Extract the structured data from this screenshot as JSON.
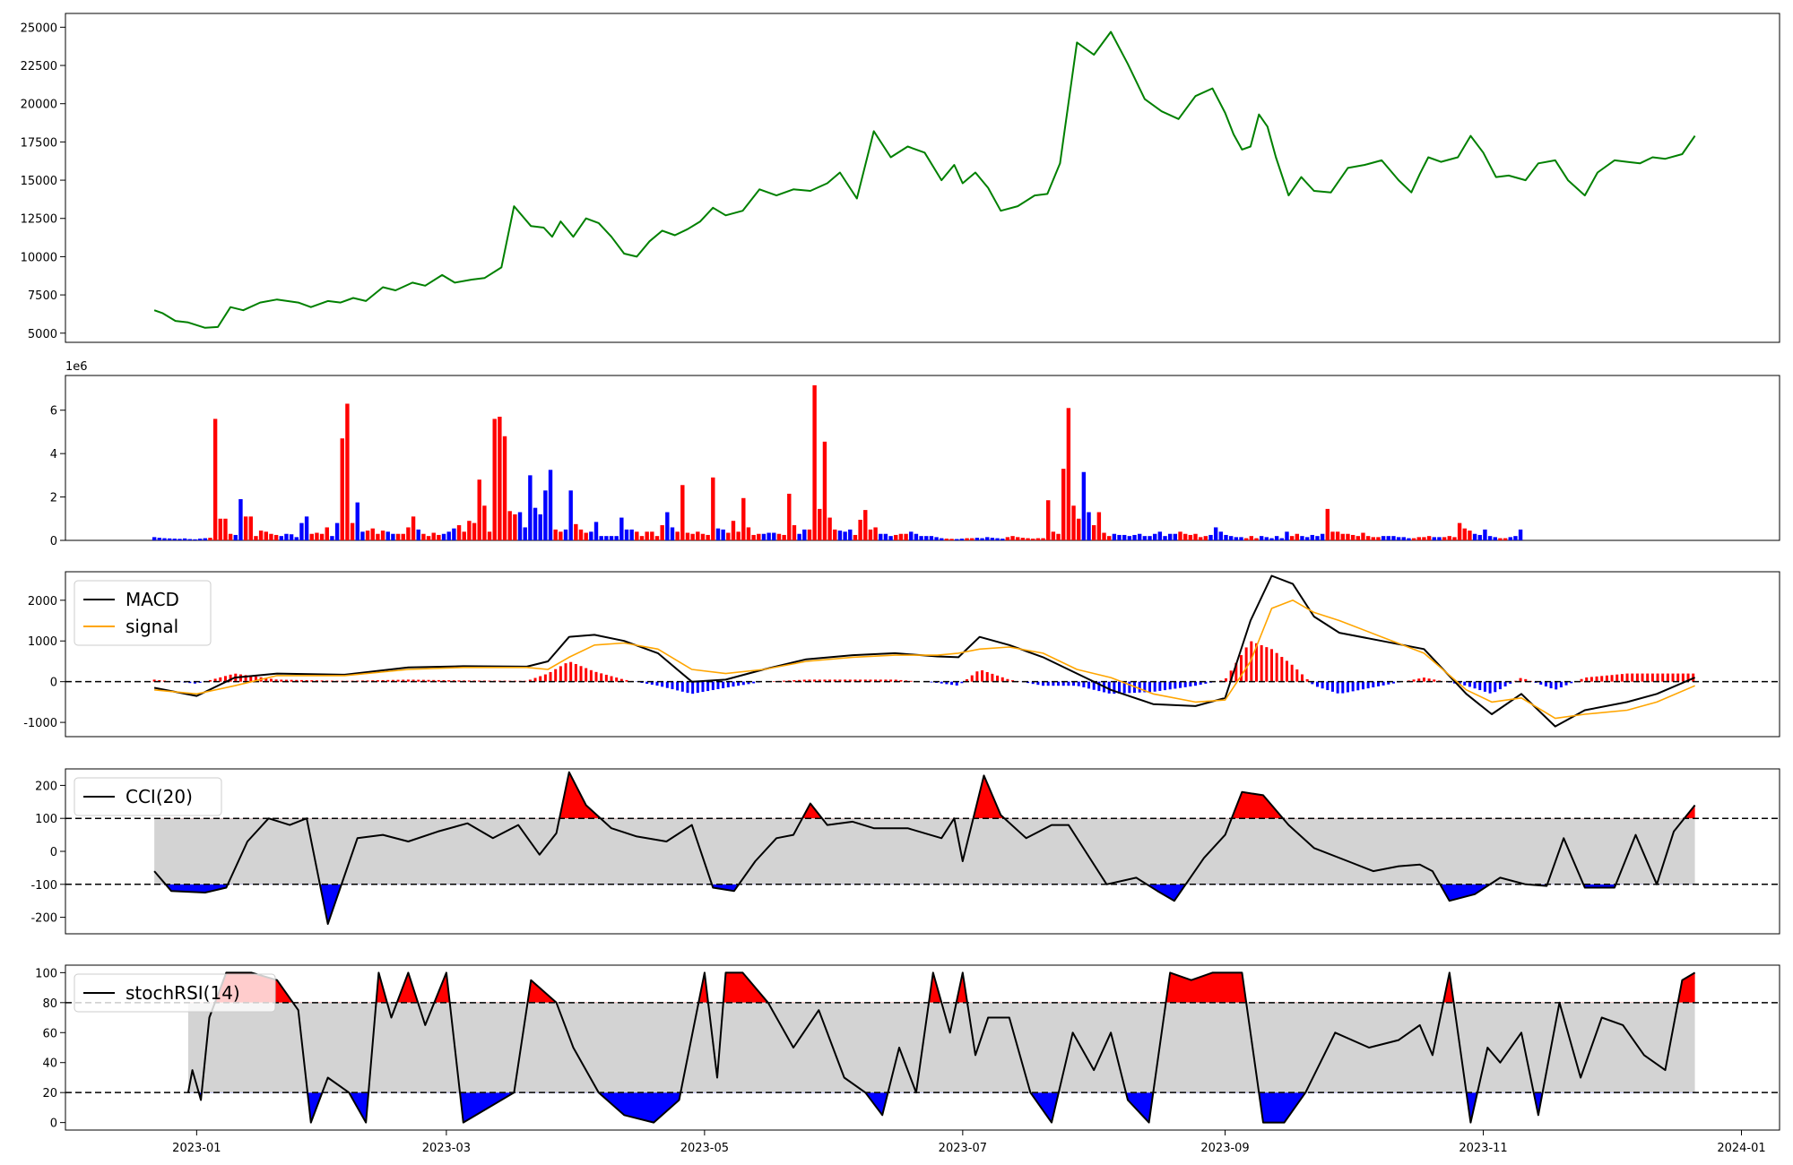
{
  "chart_data": [
    {
      "type": "line",
      "name": "price",
      "color": "#008000",
      "ylim": [
        4400,
        25900
      ],
      "yticks": [
        5000,
        7500,
        10000,
        12500,
        15000,
        17500,
        20000,
        22500,
        25000
      ],
      "x": [
        "2022-12-22",
        "2022-12-24",
        "2022-12-27",
        "2022-12-30",
        "2023-01-03",
        "2023-01-06",
        "2023-01-09",
        "2023-01-12",
        "2023-01-16",
        "2023-01-20",
        "2023-01-25",
        "2023-01-28",
        "2023-02-01",
        "2023-02-04",
        "2023-02-07",
        "2023-02-10",
        "2023-02-14",
        "2023-02-17",
        "2023-02-21",
        "2023-02-24",
        "2023-02-28",
        "2023-03-03",
        "2023-03-07",
        "2023-03-10",
        "2023-03-14",
        "2023-03-17",
        "2023-03-21",
        "2023-03-24",
        "2023-03-26",
        "2023-03-28",
        "2023-03-31",
        "2023-04-03",
        "2023-04-06",
        "2023-04-09",
        "2023-04-12",
        "2023-04-15",
        "2023-04-18",
        "2023-04-21",
        "2023-04-24",
        "2023-04-27",
        "2023-04-30",
        "2023-05-03",
        "2023-05-06",
        "2023-05-10",
        "2023-05-14",
        "2023-05-18",
        "2023-05-22",
        "2023-05-26",
        "2023-05-30",
        "2023-06-02",
        "2023-06-06",
        "2023-06-10",
        "2023-06-14",
        "2023-06-18",
        "2023-06-22",
        "2023-06-26",
        "2023-06-29",
        "2023-07-01",
        "2023-07-04",
        "2023-07-07",
        "2023-07-10",
        "2023-07-14",
        "2023-07-18",
        "2023-07-21",
        "2023-07-24",
        "2023-07-28",
        "2023-08-01",
        "2023-08-05",
        "2023-08-09",
        "2023-08-13",
        "2023-08-17",
        "2023-08-21",
        "2023-08-25",
        "2023-08-29",
        "2023-09-01",
        "2023-09-03",
        "2023-09-05",
        "2023-09-07",
        "2023-09-09",
        "2023-09-11",
        "2023-09-13",
        "2023-09-16",
        "2023-09-19",
        "2023-09-22",
        "2023-09-26",
        "2023-09-30",
        "2023-10-04",
        "2023-10-08",
        "2023-10-12",
        "2023-10-15",
        "2023-10-17",
        "2023-10-19",
        "2023-10-22",
        "2023-10-26",
        "2023-10-29",
        "2023-11-01",
        "2023-11-04",
        "2023-11-07",
        "2023-11-11",
        "2023-11-14",
        "2023-11-18",
        "2023-11-21",
        "2023-11-25",
        "2023-11-28",
        "2023-12-02",
        "2023-12-05",
        "2023-12-08",
        "2023-12-11",
        "2023-12-14",
        "2023-12-18",
        "2023-12-21"
      ],
      "y": [
        6500,
        6300,
        5800,
        5700,
        5350,
        5400,
        6700,
        6500,
        7000,
        7200,
        7000,
        6700,
        7100,
        7000,
        7300,
        7100,
        8000,
        7800,
        8300,
        8100,
        8800,
        8300,
        8500,
        8600,
        9300,
        13300,
        12000,
        11900,
        11300,
        12300,
        11300,
        12500,
        12200,
        11300,
        10200,
        10000,
        11000,
        11700,
        11400,
        11800,
        12300,
        13200,
        12700,
        13000,
        14400,
        14000,
        14400,
        14300,
        14800,
        15500,
        13800,
        18200,
        16500,
        17200,
        16800,
        15000,
        16000,
        14800,
        15500,
        14500,
        13000,
        13300,
        14000,
        14100,
        16100,
        24000,
        23200,
        24700,
        22600,
        20300,
        19500,
        19000,
        20500,
        21000,
        19400,
        18000,
        17000,
        17200,
        19300,
        18500,
        16500,
        14000,
        15200,
        14300,
        14200,
        15800,
        16000,
        16300,
        15000,
        14200,
        15400,
        16500,
        16200,
        16500,
        17900,
        16800,
        15200,
        15300,
        15000,
        16100,
        16300,
        15000,
        14000,
        15500,
        16300,
        16200,
        16100,
        16500,
        16400,
        16700,
        17900
      ]
    },
    {
      "type": "bar",
      "name": "volume",
      "scale_label": "1e6",
      "ylim": [
        0,
        7.6
      ],
      "yticks": [
        0,
        2,
        4,
        6
      ],
      "colors": {
        "up": "#ff0000",
        "down": "#0000ff"
      },
      "start": "2022-12-22",
      "step_days": 1.2,
      "values": [
        0.15,
        0.12,
        0.1,
        0.09,
        0.08,
        0.07,
        0.09,
        0.06,
        0.05,
        0.08,
        0.1,
        0.12,
        5.6,
        1.0,
        1.0,
        0.3,
        0.25,
        1.9,
        1.1,
        1.1,
        0.2,
        0.45,
        0.4,
        0.3,
        0.25,
        0.2,
        0.3,
        0.28,
        0.15,
        0.8,
        1.1,
        0.3,
        0.35,
        0.3,
        0.6,
        0.2,
        0.8,
        4.7,
        6.3,
        0.8,
        1.75,
        0.4,
        0.45,
        0.55,
        0.3,
        0.45,
        0.4,
        0.3,
        0.3,
        0.3,
        0.6,
        1.1,
        0.5,
        0.3,
        0.2,
        0.35,
        0.25,
        0.3,
        0.4,
        0.55,
        0.7,
        0.4,
        0.9,
        0.8,
        2.8,
        1.6,
        0.4,
        5.6,
        5.7,
        4.8,
        1.35,
        1.2,
        1.3,
        0.6,
        3.0,
        1.5,
        1.2,
        2.3,
        3.25,
        0.5,
        0.4,
        0.5,
        2.3,
        0.75,
        0.5,
        0.35,
        0.4,
        0.85,
        0.2,
        0.2,
        0.2,
        0.2,
        1.05,
        0.5,
        0.5,
        0.4,
        0.2,
        0.4,
        0.4,
        0.2,
        0.7,
        1.3,
        0.6,
        0.4,
        2.55,
        0.35,
        0.3,
        0.4,
        0.3,
        0.25,
        2.9,
        0.55,
        0.5,
        0.35,
        0.9,
        0.4,
        1.95,
        0.6,
        0.25,
        0.3,
        0.3,
        0.35,
        0.35,
        0.3,
        0.25,
        2.15,
        0.7,
        0.3,
        0.5,
        0.5,
        7.15,
        1.45,
        4.55,
        1.05,
        0.5,
        0.45,
        0.4,
        0.5,
        0.25,
        0.95,
        1.4,
        0.5,
        0.6,
        0.3,
        0.3,
        0.2,
        0.25,
        0.3,
        0.3,
        0.4,
        0.3,
        0.2,
        0.2,
        0.2,
        0.15,
        0.1,
        0.08,
        0.07,
        0.06,
        0.08,
        0.1,
        0.1,
        0.12,
        0.1,
        0.15,
        0.12,
        0.1,
        0.08,
        0.15,
        0.2,
        0.15,
        0.12,
        0.1,
        0.08,
        0.1,
        0.1,
        1.85,
        0.4,
        0.3,
        3.3,
        6.1,
        1.6,
        1.0,
        3.15,
        1.3,
        0.7,
        1.3,
        0.35,
        0.2,
        0.3,
        0.25,
        0.25,
        0.2,
        0.25,
        0.3,
        0.2,
        0.2,
        0.3,
        0.4,
        0.2,
        0.3,
        0.3,
        0.4,
        0.3,
        0.25,
        0.3,
        0.15,
        0.2,
        0.25,
        0.6,
        0.4,
        0.25,
        0.2,
        0.15,
        0.15,
        0.1,
        0.2,
        0.1,
        0.2,
        0.15,
        0.1,
        0.2,
        0.1,
        0.4,
        0.2,
        0.3,
        0.2,
        0.15,
        0.25,
        0.2,
        0.3,
        1.45,
        0.4,
        0.4,
        0.3,
        0.3,
        0.25,
        0.2,
        0.35,
        0.2,
        0.15,
        0.15,
        0.2,
        0.2,
        0.2,
        0.15,
        0.15,
        0.1,
        0.1,
        0.15,
        0.15,
        0.2,
        0.15,
        0.15,
        0.15,
        0.2,
        0.15,
        0.8,
        0.55,
        0.45,
        0.3,
        0.25,
        0.5,
        0.2,
        0.15,
        0.1,
        0.1,
        0.15,
        0.2,
        0.5
      ]
    },
    {
      "type": "line",
      "name": "macd",
      "ylim": [
        -1350,
        2700
      ],
      "yticks": [
        -1000,
        0,
        1000,
        2000
      ],
      "legend": [
        "MACD",
        "signal"
      ],
      "legend_placement": "top-left",
      "colors": {
        "macd": "#000000",
        "signal": "#ffa500",
        "hist_pos": "#ff0000",
        "hist_neg": "#0000ff"
      },
      "x": [
        "2022-12-22",
        "2023-01-01",
        "2023-01-10",
        "2023-01-20",
        "2023-02-05",
        "2023-02-20",
        "2023-03-05",
        "2023-03-20",
        "2023-03-25",
        "2023-03-30",
        "2023-04-05",
        "2023-04-12",
        "2023-04-20",
        "2023-04-28",
        "2023-05-06",
        "2023-05-15",
        "2023-05-25",
        "2023-06-05",
        "2023-06-15",
        "2023-06-25",
        "2023-06-30",
        "2023-07-05",
        "2023-07-12",
        "2023-07-20",
        "2023-07-28",
        "2023-08-05",
        "2023-08-15",
        "2023-08-25",
        "2023-09-01",
        "2023-09-07",
        "2023-09-12",
        "2023-09-17",
        "2023-09-22",
        "2023-09-28",
        "2023-10-08",
        "2023-10-18",
        "2023-10-28",
        "2023-11-03",
        "2023-11-10",
        "2023-11-18",
        "2023-11-25",
        "2023-12-05",
        "2023-12-12",
        "2023-12-21"
      ],
      "macd": [
        -150,
        -350,
        100,
        200,
        170,
        350,
        380,
        370,
        500,
        1100,
        1150,
        1000,
        700,
        0,
        50,
        300,
        550,
        650,
        700,
        620,
        600,
        1100,
        900,
        600,
        200,
        -200,
        -550,
        -600,
        -400,
        1500,
        2600,
        2400,
        1600,
        1200,
        1000,
        800,
        -300,
        -800,
        -300,
        -1100,
        -700,
        -500,
        -300,
        100
      ],
      "signal": [
        -200,
        -300,
        -100,
        150,
        150,
        300,
        350,
        350,
        300,
        600,
        900,
        950,
        800,
        300,
        200,
        300,
        500,
        600,
        650,
        650,
        700,
        800,
        850,
        700,
        300,
        100,
        -300,
        -500,
        -450,
        500,
        1800,
        2000,
        1700,
        1500,
        1100,
        700,
        -200,
        -500,
        -400,
        -900,
        -800,
        -700,
        -500,
        -100
      ]
    },
    {
      "type": "line",
      "name": "cci",
      "ylim": [
        -250,
        250
      ],
      "yticks": [
        -200,
        -100,
        0,
        100,
        200
      ],
      "thresholds": [
        100,
        -100
      ],
      "legend": [
        "CCI(20)"
      ],
      "legend_placement": "top-left",
      "colors": {
        "line": "#000000",
        "over": "#ff0000",
        "under": "#0000ff",
        "band": "#d3d3d3"
      },
      "x": [
        "2022-12-22",
        "2022-12-26",
        "2023-01-03",
        "2023-01-08",
        "2023-01-13",
        "2023-01-18",
        "2023-01-23",
        "2023-01-27",
        "2023-02-01",
        "2023-02-08",
        "2023-02-14",
        "2023-02-20",
        "2023-02-27",
        "2023-03-06",
        "2023-03-12",
        "2023-03-18",
        "2023-03-23",
        "2023-03-27",
        "2023-03-30",
        "2023-04-03",
        "2023-04-09",
        "2023-04-15",
        "2023-04-22",
        "2023-04-28",
        "2023-05-03",
        "2023-05-08",
        "2023-05-13",
        "2023-05-18",
        "2023-05-22",
        "2023-05-26",
        "2023-05-30",
        "2023-06-05",
        "2023-06-10",
        "2023-06-18",
        "2023-06-26",
        "2023-06-29",
        "2023-07-01",
        "2023-07-06",
        "2023-07-10",
        "2023-07-16",
        "2023-07-22",
        "2023-07-26",
        "2023-07-30",
        "2023-08-04",
        "2023-08-11",
        "2023-08-16",
        "2023-08-20",
        "2023-08-27",
        "2023-09-01",
        "2023-09-05",
        "2023-09-10",
        "2023-09-16",
        "2023-09-22",
        "2023-09-30",
        "2023-10-06",
        "2023-10-12",
        "2023-10-17",
        "2023-10-20",
        "2023-10-24",
        "2023-10-30",
        "2023-11-05",
        "2023-11-11",
        "2023-11-16",
        "2023-11-20",
        "2023-11-25",
        "2023-12-02",
        "2023-12-07",
        "2023-12-12",
        "2023-12-16",
        "2023-12-21"
      ],
      "y": [
        -60,
        -120,
        -125,
        -110,
        30,
        100,
        80,
        100,
        -220,
        40,
        50,
        30,
        60,
        85,
        40,
        80,
        -10,
        55,
        240,
        140,
        70,
        45,
        30,
        80,
        -110,
        -120,
        -30,
        40,
        50,
        145,
        80,
        90,
        70,
        70,
        40,
        100,
        -30,
        230,
        110,
        40,
        80,
        80,
        0,
        -100,
        -80,
        -120,
        -150,
        -20,
        50,
        180,
        170,
        80,
        10,
        -30,
        -60,
        -45,
        -40,
        -60,
        -150,
        -130,
        -80,
        -100,
        -105,
        40,
        -110,
        -110,
        50,
        -100,
        60,
        140
      ]
    },
    {
      "type": "line",
      "name": "stochrsi",
      "ylim": [
        -5,
        105
      ],
      "yticks": [
        0,
        20,
        40,
        60,
        80,
        100
      ],
      "thresholds": [
        80,
        20
      ],
      "legend": [
        "stochRSI(14)"
      ],
      "legend_placement": "top-left",
      "colors": {
        "line": "#000000",
        "over": "#ff0000",
        "under": "#0000ff",
        "band": "#d3d3d3"
      },
      "x": [
        "2022-12-30",
        "2022-12-31",
        "2023-01-02",
        "2023-01-04",
        "2023-01-08",
        "2023-01-14",
        "2023-01-20",
        "2023-01-25",
        "2023-01-28",
        "2023-02-01",
        "2023-02-06",
        "2023-02-10",
        "2023-02-13",
        "2023-02-16",
        "2023-02-20",
        "2023-02-24",
        "2023-03-01",
        "2023-03-05",
        "2023-03-11",
        "2023-03-17",
        "2023-03-21",
        "2023-03-27",
        "2023-03-31",
        "2023-04-06",
        "2023-04-12",
        "2023-04-19",
        "2023-04-25",
        "2023-05-01",
        "2023-05-04",
        "2023-05-06",
        "2023-05-10",
        "2023-05-16",
        "2023-05-22",
        "2023-05-28",
        "2023-06-03",
        "2023-06-08",
        "2023-06-12",
        "2023-06-16",
        "2023-06-20",
        "2023-06-24",
        "2023-06-28",
        "2023-07-01",
        "2023-07-04",
        "2023-07-07",
        "2023-07-12",
        "2023-07-17",
        "2023-07-22",
        "2023-07-27",
        "2023-08-01",
        "2023-08-05",
        "2023-08-09",
        "2023-08-14",
        "2023-08-19",
        "2023-08-24",
        "2023-08-29",
        "2023-09-01",
        "2023-09-05",
        "2023-09-10",
        "2023-09-15",
        "2023-09-20",
        "2023-09-27",
        "2023-10-05",
        "2023-10-12",
        "2023-10-17",
        "2023-10-20",
        "2023-10-24",
        "2023-10-29",
        "2023-11-02",
        "2023-11-05",
        "2023-11-10",
        "2023-11-14",
        "2023-11-19",
        "2023-11-24",
        "2023-11-29",
        "2023-12-04",
        "2023-12-09",
        "2023-12-14",
        "2023-12-18",
        "2023-12-21"
      ],
      "y": [
        20,
        35,
        15,
        70,
        100,
        100,
        95,
        75,
        0,
        30,
        20,
        0,
        100,
        70,
        100,
        65,
        100,
        0,
        10,
        20,
        95,
        80,
        50,
        20,
        5,
        0,
        15,
        100,
        30,
        100,
        100,
        80,
        50,
        75,
        30,
        20,
        5,
        50,
        20,
        100,
        60,
        100,
        45,
        70,
        70,
        20,
        0,
        60,
        35,
        60,
        15,
        0,
        100,
        95,
        100,
        100,
        100,
        0,
        0,
        20,
        60,
        50,
        55,
        65,
        45,
        100,
        0,
        50,
        40,
        60,
        5,
        80,
        30,
        70,
        65,
        45,
        35,
        95,
        100
      ]
    }
  ],
  "x_axis": {
    "ticks": [
      "2023-01",
      "2023-03",
      "2023-05",
      "2023-07",
      "2023-09",
      "2023-11",
      "2024-01"
    ]
  }
}
